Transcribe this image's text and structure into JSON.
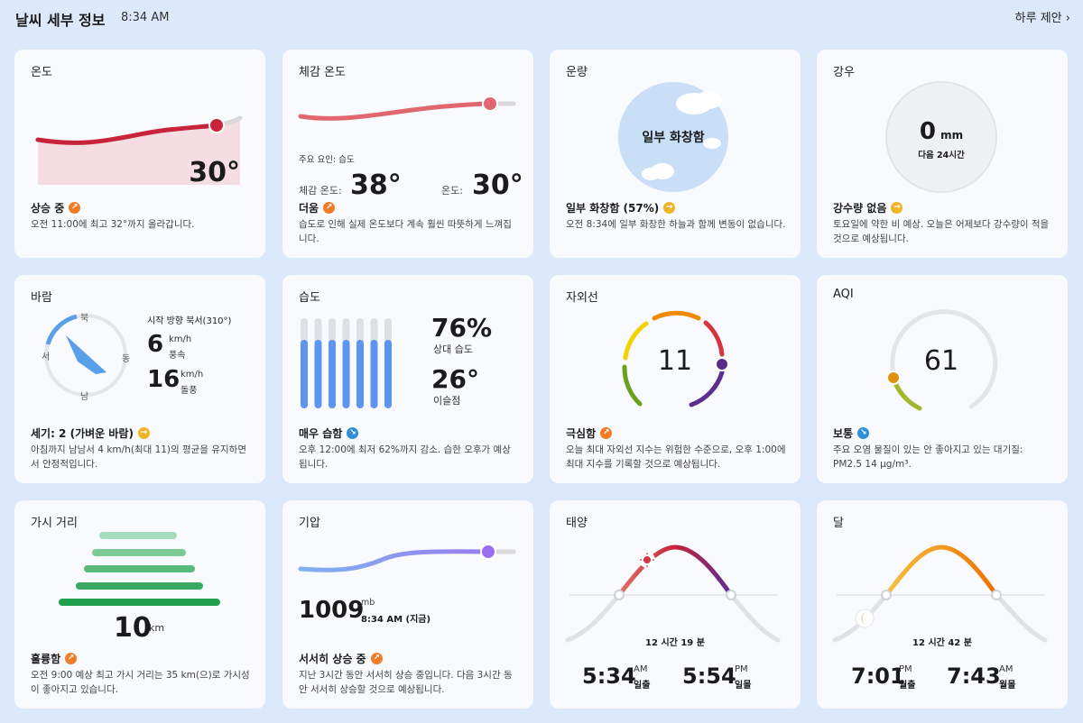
{
  "header": {
    "title": "날씨 세부 정보",
    "time": "8:34 AM",
    "link": "하루 제안"
  },
  "temperature": {
    "title": "온도",
    "value": "30°",
    "status": "상승 중",
    "desc": "오전 11:00에 최고 32°까지 올라갑니다."
  },
  "feels": {
    "title": "체감 온도",
    "factor": "주요 요인: 습도",
    "feels_label": "체감 온도:",
    "feels_value": "38°",
    "temp_label": "온도:",
    "temp_value": "30°",
    "status": "더움",
    "desc": "습도로 인해 실제 온도보다 계속 훨씬 따뜻하게 느껴집니다."
  },
  "cloud": {
    "title": "운량",
    "center": "일부 화창함",
    "status": "일부 화창함 (57%)",
    "desc": "오전 8:34에 일부 화창한 하늘과 함께 변동이 없습니다.",
    "percent": 57
  },
  "rain": {
    "title": "강우",
    "value": "0",
    "unit": "mm",
    "sub": "다음 24시간",
    "status": "강수량 없음",
    "desc": "토요일에 약한 비 예상. 오늘은 어제보다 강수량이 적을 것으로 예상됩니다."
  },
  "wind": {
    "title": "바람",
    "north": "북",
    "south": "남",
    "west": "서",
    "east": "동",
    "direction": "시작 방향 북서(310°)",
    "speed": "6",
    "speed_unit": "km/h",
    "speed_label": "풍속",
    "gust": "16",
    "gust_unit": "km/h",
    "gust_label": "돌풍",
    "degrees": 310,
    "status": "세기: 2 (가벼운 바람)",
    "desc": "아침까지 남남서 4 km/h(최대 11)의 평균을 유지하면서 안정적입니다."
  },
  "humidity": {
    "title": "습도",
    "value": "76%",
    "value_label": "상대 습도",
    "dew": "26°",
    "dew_label": "이슬점",
    "bars": [
      0.76,
      0.76,
      0.76,
      0.76,
      0.76,
      0.76,
      0.76
    ],
    "status": "매우 습함",
    "desc": "오후 12:00에 최저 62%까지 감소. 습한 오후가 예상됩니다."
  },
  "uv": {
    "title": "자외선",
    "value": "11",
    "status": "극심함",
    "desc": "오늘 최대 자외선 지수는 위험한 수준으로, 오후 1:00에 최대 지수를 기록할 것으로 예상됩니다.",
    "colors": {
      "green": "#6aa121",
      "yellow": "#f2d300",
      "orange": "#f08a00",
      "red": "#d6343e",
      "purple": "#5c2d91"
    }
  },
  "aqi": {
    "title": "AQI",
    "value": "61",
    "status": "보통",
    "desc": "주요 오염 물질이 있는 안 좋아지고 있는 대기질: PM2.5 14 μg/m³."
  },
  "visibility": {
    "title": "가시 거리",
    "value": "10",
    "unit": "km",
    "status": "훌륭함",
    "desc": "오전 9:00 예상 최고 가시 거리는 35 km(으)로 가시성이 좋아지고 있습니다."
  },
  "pressure": {
    "title": "기압",
    "value": "1009",
    "unit": "mb",
    "time": "8:34 AM (지금)",
    "status": "서서히 상승 중",
    "desc": "지난 3시간 동안 서서히 상승 중입니다. 다음 3시간 동안 서서히 상승할 것으로 예상됩니다."
  },
  "sun": {
    "title": "태양",
    "duration": "12 시간 19 분",
    "rise": "5:34",
    "rise_ampm": "AM",
    "rise_label": "일출",
    "set": "5:54",
    "set_ampm": "PM",
    "set_label": "일몰"
  },
  "moon": {
    "title": "달",
    "duration": "12 시간 42 분",
    "rise": "7:01",
    "rise_ampm": "PM",
    "rise_label": "월출",
    "set": "7:43",
    "set_ampm": "AM",
    "set_label": "월몰"
  }
}
